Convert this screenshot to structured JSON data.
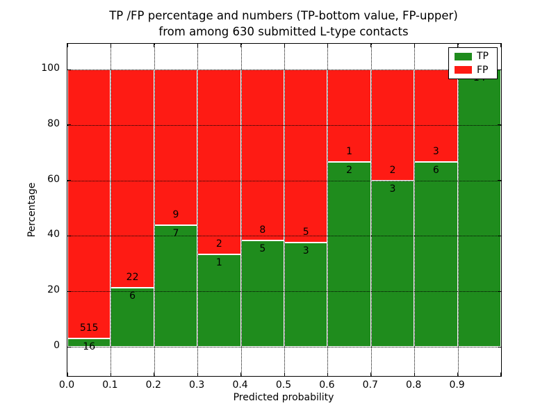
{
  "chart_data": {
    "type": "bar",
    "variant": "stacked-percentage-histogram",
    "title": "TP /FP percentage and numbers (TP-bottom value, FP-upper) from among 630 submitted L-type contacts",
    "title_line1": "TP /FP percentage and numbers (TP-bottom value, FP-upper)",
    "title_line2": "from among 630 submitted L-type contacts",
    "xlabel": "Predicted probability",
    "ylabel": "Percentage",
    "x_tick_labels": [
      "0.0",
      "0.1",
      "0.2",
      "0.3",
      "0.4",
      "0.5",
      "0.6",
      "0.7",
      "0.8",
      "0.9"
    ],
    "y_ticks": [
      0,
      20,
      40,
      60,
      80,
      100
    ],
    "xlim": [
      0.0,
      1.0
    ],
    "ylim": [
      0,
      100
    ],
    "bin_width": 0.1,
    "grid": "dotted",
    "categories": [
      "0.0-0.1",
      "0.1-0.2",
      "0.2-0.3",
      "0.3-0.4",
      "0.4-0.5",
      "0.5-0.6",
      "0.6-0.7",
      "0.7-0.8",
      "0.8-0.9",
      "0.9-1.0"
    ],
    "series": [
      {
        "name": "TP",
        "color": "#1f8c1d",
        "values": [
          16,
          6,
          7,
          1,
          5,
          3,
          2,
          3,
          6,
          14
        ]
      },
      {
        "name": "FP",
        "color": "#fe1b14",
        "values": [
          515,
          22,
          9,
          2,
          8,
          5,
          1,
          2,
          3,
          0
        ]
      }
    ],
    "tp_percent_by_bin": [
      3.0,
      21.4,
      43.8,
      33.3,
      38.5,
      37.5,
      66.7,
      60.0,
      66.7,
      100.0
    ],
    "legend": {
      "position": "upper-right",
      "entries": [
        {
          "label": "TP",
          "color": "#1f8c1d"
        },
        {
          "label": "FP",
          "color": "#fe1b14"
        }
      ]
    }
  }
}
